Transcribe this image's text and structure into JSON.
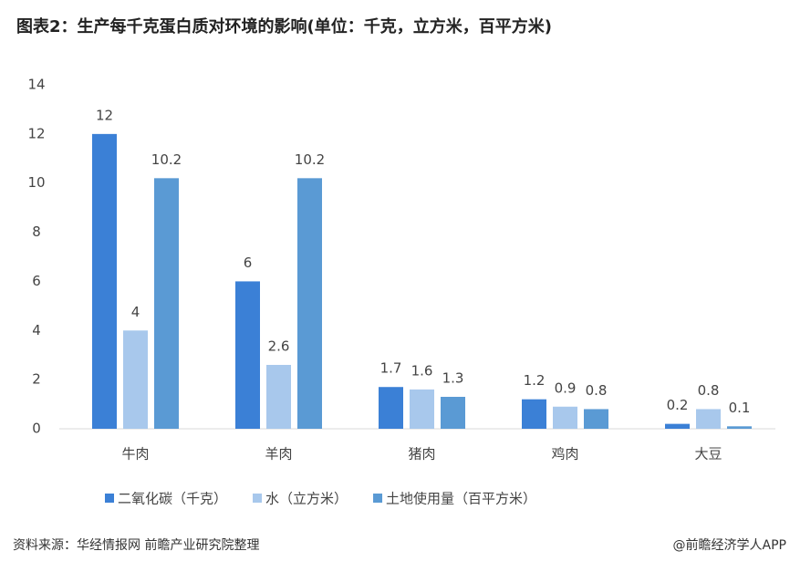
{
  "chart_data": {
    "type": "bar",
    "title": "图表2：生产每千克蛋白质对环境的影响(单位：千克，立方米，百平方米)",
    "categories": [
      "牛肉",
      "羊肉",
      "猪肉",
      "鸡肉",
      "大豆"
    ],
    "series": [
      {
        "name": "二氧化碳（千克）",
        "color": "#3b80d6",
        "values": [
          12,
          6,
          1.7,
          1.2,
          0.2
        ]
      },
      {
        "name": "水（立方米）",
        "color": "#a8c8ec",
        "values": [
          4,
          2.6,
          1.6,
          0.9,
          0.8
        ]
      },
      {
        "name": "土地使用量（百平方米）",
        "color": "#5a9ad4",
        "values": [
          10.2,
          10.2,
          1.3,
          0.8,
          0.1
        ]
      }
    ],
    "ylim": [
      0,
      14
    ],
    "yticks": [
      0,
      2,
      4,
      6,
      8,
      10,
      12,
      14
    ],
    "grid": false,
    "source": "资料来源：华经情报网 前瞻产业研究院整理",
    "credit": "@前瞻经济学人APP"
  }
}
